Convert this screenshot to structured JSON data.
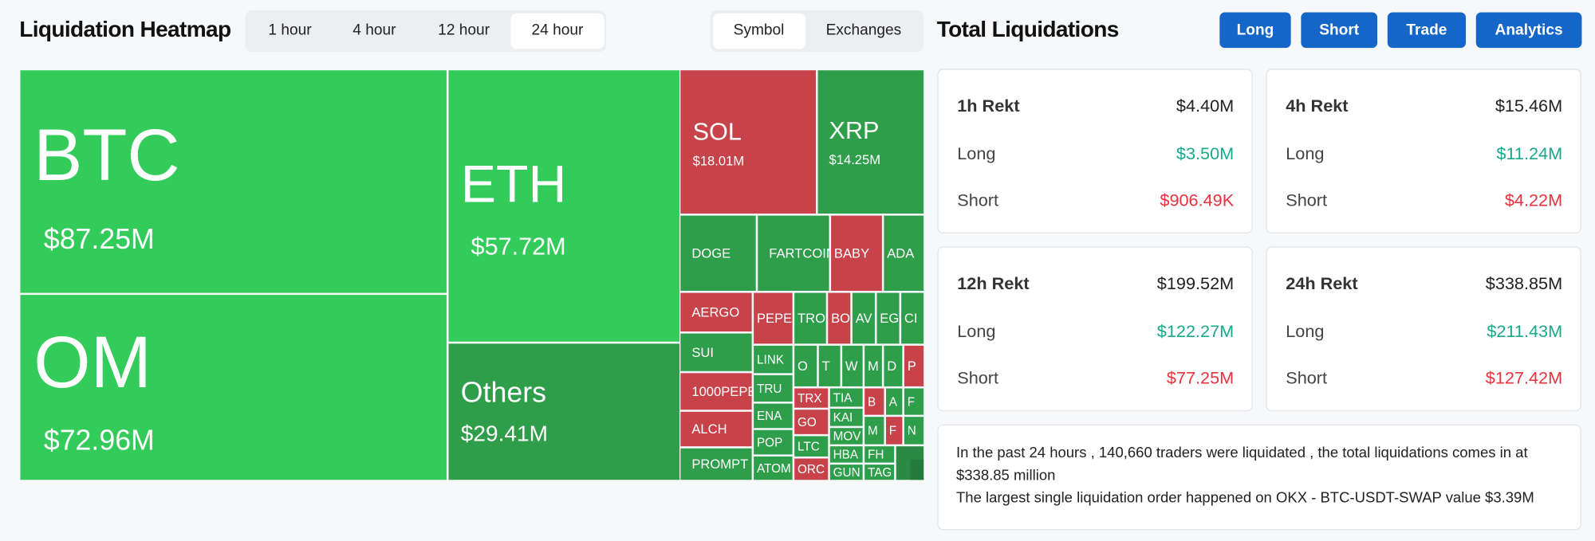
{
  "header": {
    "title": "Liquidation Heatmap",
    "time_tabs": [
      "1 hour",
      "4 hour",
      "12 hour",
      "24 hour"
    ],
    "view_tabs": [
      "Symbol",
      "Exchanges"
    ]
  },
  "panel": {
    "title": "Total Liquidations",
    "buttons": [
      "Long",
      "Short",
      "Trade",
      "Analytics"
    ]
  },
  "heatmap": {
    "tiles": [
      {
        "label": "BTC",
        "value": "$87.25M",
        "color": "#33cc5a"
      },
      {
        "label": "OM",
        "value": "$72.96M",
        "color": "#33cc5a"
      },
      {
        "label": "ETH",
        "value": "$57.72M",
        "color": "#33cc5a"
      },
      {
        "label": "Others",
        "value": "$29.41M",
        "color": "#2f9e4b"
      },
      {
        "label": "SOL",
        "value": "$18.01M",
        "color": "#c8424a"
      },
      {
        "label": "XRP",
        "value": "$14.25M",
        "color": "#2f9e4b"
      },
      {
        "label": "DOGE",
        "color": "#2f9e4b"
      },
      {
        "label": "FARTCOIN",
        "color": "#2f9e4b"
      },
      {
        "label": "BABY",
        "color": "#c8424a"
      },
      {
        "label": "ADA",
        "color": "#2f9e4b"
      },
      {
        "label": "AERGO",
        "color": "#c8424a"
      },
      {
        "label": "SUI",
        "color": "#2f9e4b"
      },
      {
        "label": "1000PEPE",
        "color": "#c8424a"
      },
      {
        "label": "ALCH",
        "color": "#c8424a"
      },
      {
        "label": "PROMPT",
        "color": "#2f9e4b"
      },
      {
        "label": "PEPE",
        "color": "#c8424a"
      },
      {
        "label": "TRO",
        "color": "#2f9e4b"
      },
      {
        "label": "BO",
        "color": "#c8424a"
      },
      {
        "label": "AV",
        "color": "#2f9e4b"
      },
      {
        "label": "EG",
        "color": "#2f9e4b"
      },
      {
        "label": "CI",
        "color": "#2f9e4b"
      },
      {
        "label": "LINK",
        "color": "#2f9e4b"
      },
      {
        "label": "TRU",
        "color": "#2f9e4b"
      },
      {
        "label": "ENA",
        "color": "#2f9e4b"
      },
      {
        "label": "POP",
        "color": "#2f9e4b"
      },
      {
        "label": "ATOM",
        "color": "#2f9e4b"
      },
      {
        "label": "O",
        "color": "#2f9e4b"
      },
      {
        "label": "T",
        "color": "#2f9e4b"
      },
      {
        "label": "W",
        "color": "#2f9e4b"
      },
      {
        "label": "M",
        "color": "#2f9e4b"
      },
      {
        "label": "D",
        "color": "#2f9e4b"
      },
      {
        "label": "P",
        "color": "#c8424a"
      },
      {
        "label": "TRX",
        "color": "#c8424a"
      },
      {
        "label": "GO",
        "color": "#c8424a"
      },
      {
        "label": "LTC",
        "color": "#2f9e4b"
      },
      {
        "label": "ORC",
        "color": "#c8424a"
      },
      {
        "label": "TIA",
        "color": "#2f9e4b"
      },
      {
        "label": "KAI",
        "color": "#2f9e4b"
      },
      {
        "label": "MOV",
        "color": "#2f9e4b"
      },
      {
        "label": "HBA",
        "color": "#2f9e4b"
      },
      {
        "label": "GUN",
        "color": "#2f9e4b"
      },
      {
        "label": "B",
        "color": "#c8424a"
      },
      {
        "label": "A",
        "color": "#2f9e4b"
      },
      {
        "label": "F",
        "color": "#2f9e4b"
      },
      {
        "label": "M",
        "color": "#2f9e4b"
      },
      {
        "label": "F",
        "color": "#c8424a"
      },
      {
        "label": "N",
        "color": "#2f9e4b"
      },
      {
        "label": "FH",
        "color": "#2f9e4b"
      },
      {
        "label": "TAG",
        "color": "#2f9e4b"
      }
    ]
  },
  "cards": [
    {
      "title": "1h Rekt",
      "total": "$4.40M",
      "long_label": "Long",
      "long": "$3.50M",
      "short_label": "Short",
      "short": "$906.49K"
    },
    {
      "title": "4h Rekt",
      "total": "$15.46M",
      "long_label": "Long",
      "long": "$11.24M",
      "short_label": "Short",
      "short": "$4.22M"
    },
    {
      "title": "12h Rekt",
      "total": "$199.52M",
      "long_label": "Long",
      "long": "$122.27M",
      "short_label": "Short",
      "short": "$77.25M"
    },
    {
      "title": "24h Rekt",
      "total": "$338.85M",
      "long_label": "Long",
      "long": "$211.43M",
      "short_label": "Short",
      "short": "$127.42M"
    }
  ],
  "summary": {
    "lines": [
      "In the past 24 hours , 140,660 traders were liquidated , the total liquidations comes in at $338.85 million",
      "The largest single liquidation order happened on OKX - BTC-USDT-SWAP value $3.39M"
    ]
  }
}
